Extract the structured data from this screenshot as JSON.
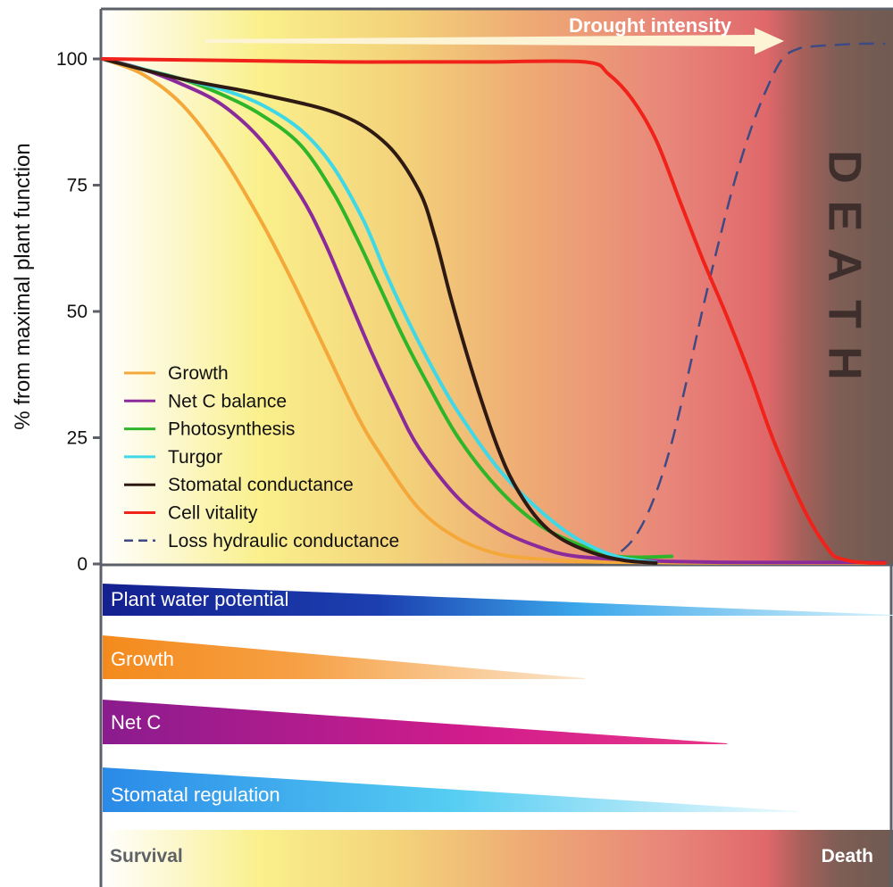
{
  "chart_data": {
    "type": "line",
    "xlabel": "",
    "ylabel": "% from maximal plant function",
    "xlim": [
      0,
      100
    ],
    "ylim": [
      0,
      100
    ],
    "yticks": [
      0,
      25,
      50,
      75,
      100
    ],
    "ytick_labels": [
      "0",
      "25",
      "50",
      "75",
      "100"
    ],
    "annotations": {
      "arrow_label": "Drought intensity",
      "death_label": "DEATH",
      "scale_left": "Survival",
      "scale_right": "Death"
    },
    "legend_placement": "bottom-left",
    "series": [
      {
        "name": "Growth",
        "color": "#f5a83a",
        "dash": false,
        "x": [
          0,
          5,
          10,
          15,
          20,
          24,
          28,
          32,
          35,
          40,
          45,
          50,
          55,
          60,
          70,
          80,
          99
        ],
        "y": [
          100,
          97,
          91,
          81,
          68,
          56,
          43,
          30,
          22,
          11,
          5,
          2,
          1,
          0.5,
          0.3,
          0.2,
          0.2
        ]
      },
      {
        "name": "Net C balance",
        "color": "#8b2a9b",
        "dash": false,
        "x": [
          0,
          5,
          10,
          15,
          20,
          25,
          28,
          31,
          34,
          37,
          40,
          45,
          50,
          55,
          60,
          70,
          80,
          99
        ],
        "y": [
          100,
          98,
          95,
          91,
          84,
          73,
          64,
          53,
          42,
          32,
          23,
          13,
          7,
          3.5,
          1.5,
          0.6,
          0.3,
          0.3
        ]
      },
      {
        "name": "Photosynthesis",
        "color": "#2fb52a",
        "dash": false,
        "x": [
          0,
          5,
          10,
          15,
          20,
          25,
          29,
          32,
          35,
          38,
          41,
          45,
          50,
          55,
          60,
          65,
          72
        ],
        "y": [
          100,
          98,
          96,
          93,
          89,
          83,
          74,
          65,
          55,
          45,
          36,
          25,
          15,
          8,
          4,
          1.5,
          1.5
        ]
      },
      {
        "name": "Turgor",
        "color": "#3fd8e6",
        "dash": false,
        "x": [
          0,
          5,
          10,
          15,
          20,
          25,
          29,
          33,
          36,
          39,
          42,
          45,
          50,
          55,
          60,
          65,
          70
        ],
        "y": [
          100,
          98,
          96,
          94,
          91,
          86,
          79,
          68,
          57,
          47,
          38,
          30,
          19,
          11,
          5,
          1.5,
          0.3
        ]
      },
      {
        "name": "Stomatal conductance",
        "color": "#2e1a12",
        "dash": false,
        "x": [
          0,
          10,
          20,
          30,
          36,
          40,
          42,
          44,
          46,
          48,
          50,
          52,
          55,
          58,
          62,
          66,
          70
        ],
        "y": [
          100,
          96,
          93,
          89,
          83,
          74,
          65,
          53,
          42,
          32,
          23,
          16,
          9,
          5,
          2.2,
          0.7,
          0.2
        ]
      },
      {
        "name": "Cell vitality",
        "color": "#f0221a",
        "dash": false,
        "x": [
          0,
          10,
          20,
          30,
          40,
          48,
          61,
          64,
          67,
          70,
          73,
          76,
          79,
          82,
          85,
          89,
          92,
          93.5,
          96,
          99
        ],
        "y": [
          100,
          99.8,
          99.6,
          99.4,
          99.4,
          99.4,
          99.4,
          97,
          92,
          84,
          72,
          60,
          49,
          37,
          24,
          10,
          2.5,
          1,
          0.3,
          0.2
        ]
      },
      {
        "name": "Loss hydraulic conductance",
        "color": "#3e4a84",
        "dash": true,
        "x": [
          63,
          66,
          68,
          70,
          72,
          74,
          76,
          78,
          80,
          82,
          84,
          86,
          88,
          90,
          93,
          96,
          99
        ],
        "y": [
          0,
          3,
          7,
          14,
          24,
          37,
          51,
          64,
          76,
          86,
          94,
          100,
          102,
          102.5,
          102.8,
          103,
          103
        ]
      }
    ],
    "phase_bars": [
      {
        "label": "Plant water potential",
        "from": 0,
        "to": 100
      },
      {
        "label": "Growth",
        "from": 0,
        "to": 61
      },
      {
        "label": "Net C",
        "from": 0,
        "to": 79
      },
      {
        "label": "Stomatal regulation",
        "from": 0,
        "to": 88
      }
    ]
  }
}
